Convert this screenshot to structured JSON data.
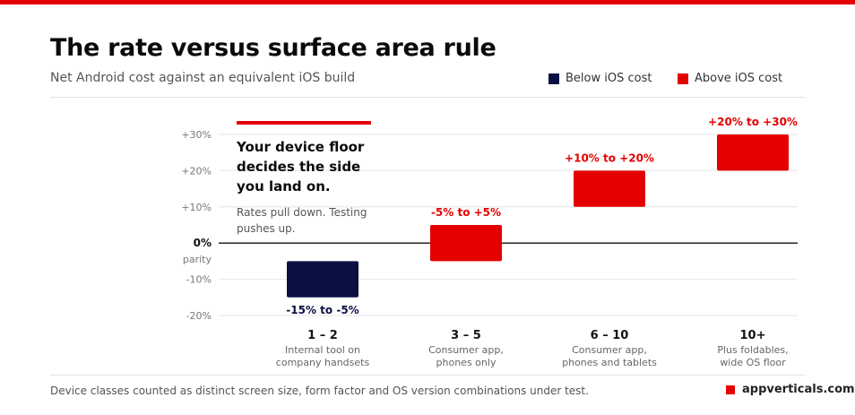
{
  "title": "The rate versus surface area rule",
  "subtitle": "Net Android cost against an equivalent iOS build",
  "legend": [
    {
      "label": "Below iOS cost",
      "color": "#0b1042"
    },
    {
      "label": "Above iOS cost",
      "color": "#e40000"
    }
  ],
  "callout": {
    "title": "Your device floor decides the side you land on.",
    "text": "Rates pull down. Testing pushes up."
  },
  "footer": "Device classes counted as distinct screen size, form factor and OS version combinations under test.",
  "brand": "appverticals.com",
  "chart_data": {
    "type": "bar",
    "categories": [
      "1 – 2",
      "3 – 5",
      "6 – 10",
      "10+"
    ],
    "category_descriptions": [
      "Internal tool on company handsets",
      "Consumer app, phones only",
      "Consumer app, phones and tablets",
      "Plus foldables, wide OS floor"
    ],
    "ranges": [
      [
        -15,
        -5
      ],
      [
        -5,
        5
      ],
      [
        10,
        20
      ],
      [
        20,
        30
      ]
    ],
    "range_labels": [
      "-15% to -5%",
      "-5% to +5%",
      "+10% to +20%",
      "+20% to +30%"
    ],
    "bar_side": [
      "below",
      "above",
      "above",
      "above"
    ],
    "y_ticks": [
      30,
      20,
      10,
      0,
      -10,
      -20
    ],
    "y_tick_labels": [
      "+30%",
      "+20%",
      "+10%",
      "0%",
      "-10%",
      "-20%"
    ],
    "zero_sublabel": "parity",
    "ylim": [
      -20,
      30
    ],
    "colors": {
      "below": "#0b1042",
      "above": "#e40000"
    }
  }
}
